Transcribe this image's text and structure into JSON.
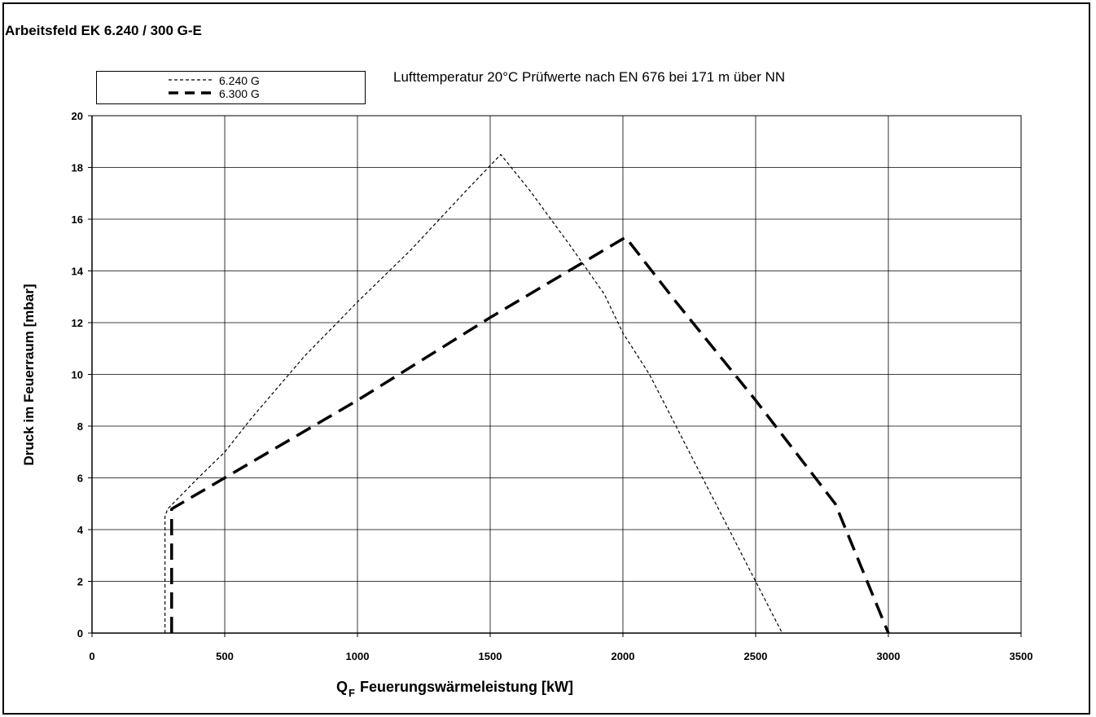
{
  "chart_data": {
    "type": "line",
    "title": "Arbeitsfeld EK 6.240 / 300 G-E",
    "annotation": "Lufttemperatur 20°C Prüfwerte nach EN 676 bei 171 m über NN",
    "xlabel": "Feuerungswärmeleistung [kW]",
    "xlabel_symbol": "Q",
    "xlabel_subscript": "F",
    "ylabel": "Druck im Feuerraum [mbar]",
    "xlim": [
      0,
      3500
    ],
    "ylim": [
      0,
      20
    ],
    "xticks": [
      0,
      500,
      1000,
      1500,
      2000,
      2500,
      3000,
      3500
    ],
    "yticks": [
      0,
      2,
      4,
      6,
      8,
      10,
      12,
      14,
      16,
      18,
      20
    ],
    "grid": true,
    "legend_position": "top-left",
    "series": [
      {
        "name": "6.240 G",
        "style": "thin-dashed",
        "color": "#000000",
        "points": [
          [
            275,
            0
          ],
          [
            275,
            4.5
          ],
          [
            285,
            4.8
          ],
          [
            400,
            6.0
          ],
          [
            500,
            7.0
          ],
          [
            600,
            8.3
          ],
          [
            800,
            10.7
          ],
          [
            1000,
            12.8
          ],
          [
            1200,
            14.8
          ],
          [
            1400,
            17.0
          ],
          [
            1540,
            18.5
          ],
          [
            1650,
            17.1
          ],
          [
            1800,
            15.0
          ],
          [
            1930,
            13.1
          ],
          [
            2000,
            11.6
          ],
          [
            2100,
            10.0
          ],
          [
            2200,
            8.0
          ],
          [
            2300,
            6.0
          ],
          [
            2400,
            4.0
          ],
          [
            2500,
            2.0
          ],
          [
            2600,
            0
          ]
        ]
      },
      {
        "name": "6.300 G",
        "style": "thick-dashed",
        "color": "#000000",
        "points": [
          [
            300,
            0
          ],
          [
            300,
            4.8
          ],
          [
            500,
            6.0
          ],
          [
            1000,
            9.0
          ],
          [
            1500,
            12.2
          ],
          [
            2010,
            15.3
          ],
          [
            2200,
            12.8
          ],
          [
            2500,
            9.0
          ],
          [
            2800,
            5.0
          ],
          [
            3000,
            0
          ]
        ]
      }
    ]
  }
}
